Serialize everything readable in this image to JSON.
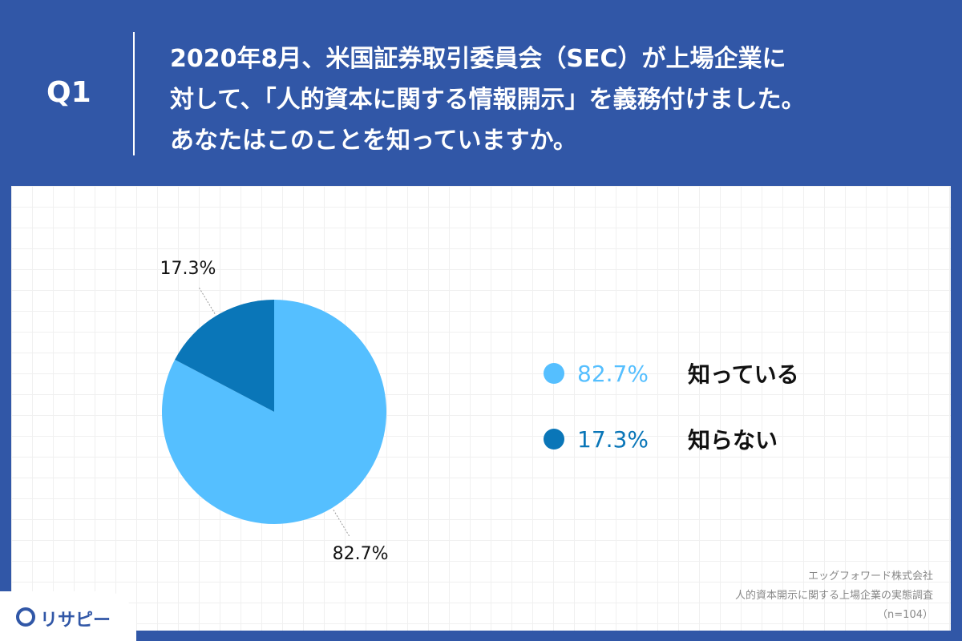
{
  "header": {
    "label": "Q1",
    "lines": [
      "2020年8月、米国証券取引委員会（SEC）が上場企業に",
      "対して、「人的資本に関する情報開示」を義務付けました。",
      "あなたはこのことを知っていますか。"
    ]
  },
  "chart_data": {
    "type": "pie",
    "categories": [
      "知っている",
      "知らない"
    ],
    "values": [
      82.7,
      17.3
    ],
    "value_labels": [
      "82.7%",
      "17.3%"
    ],
    "colors": [
      "#55bfff",
      "#0a76b8"
    ]
  },
  "source": {
    "lines": [
      "エッグフォワード株式会社",
      "人的資本開示に関する上場企業の実態調査",
      "（n=104）"
    ]
  },
  "logo": "リサピー"
}
